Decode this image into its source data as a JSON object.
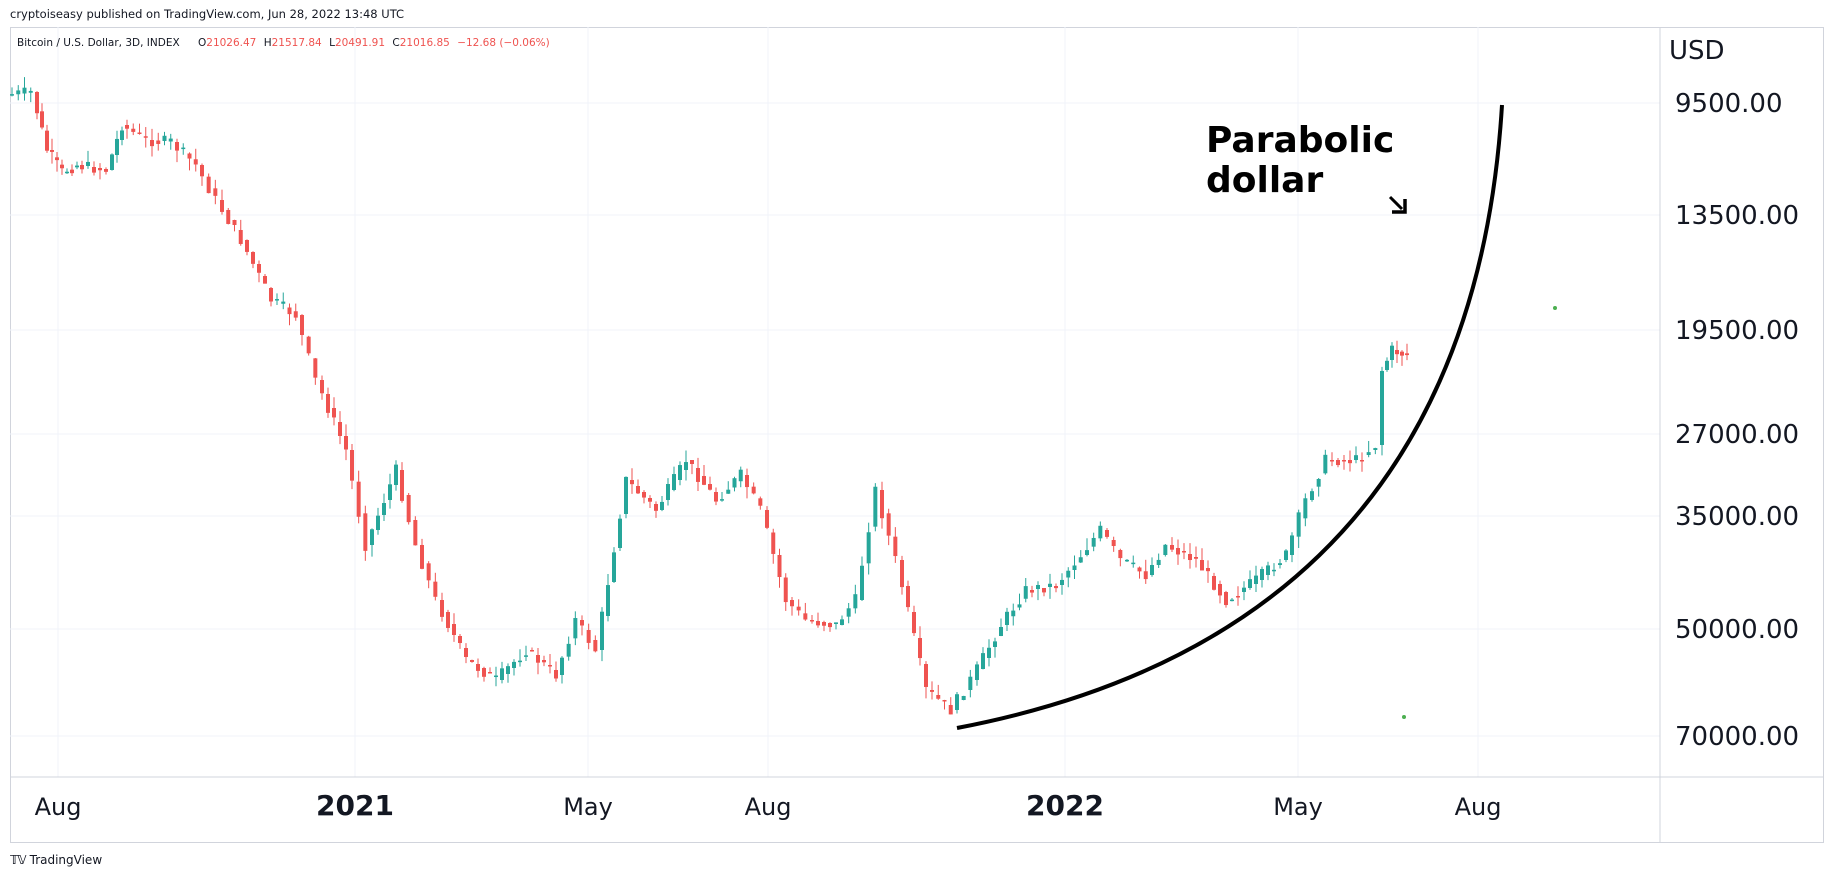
{
  "header": {
    "published": "cryptoiseasy published on TradingView.com, Jun 28, 2022 13:48 UTC"
  },
  "legend": {
    "symbol": "Bitcoin / U.S. Dollar, 3D, INDEX",
    "o_label": "O",
    "o": "21026.47",
    "h_label": "H",
    "h": "21517.84",
    "l_label": "L",
    "l": "20491.91",
    "c_label": "C",
    "c": "21016.85",
    "change": "−12.68 (−0.06%)"
  },
  "annotation": {
    "line1": "Parabolic",
    "line2": "dollar",
    "arrow_icon": "arrow-down-right-icon"
  },
  "footer": {
    "logo_icon": "tradingview-logo-icon",
    "brand": "TradingView"
  },
  "colors": {
    "up": "#ef5350",
    "down": "#26a69a",
    "grid": "#f0f3fa",
    "curve": "#000000",
    "dot": "#4caf50"
  },
  "chart_data": {
    "type": "candlestick",
    "scale": "inverted-price",
    "currency_label": "USD",
    "y_ticks": [
      "9500.00",
      "13500.00",
      "19500.00",
      "27000.00",
      "35000.00",
      "50000.00",
      "70000.00"
    ],
    "x_ticks": [
      {
        "label": "Aug",
        "bold": false
      },
      {
        "label": "2021",
        "bold": true
      },
      {
        "label": "May",
        "bold": false
      },
      {
        "label": "Aug",
        "bold": false
      },
      {
        "label": "2022",
        "bold": true
      },
      {
        "label": "May",
        "bold": false
      },
      {
        "label": "Aug",
        "bold": false
      }
    ],
    "key_points": [
      {
        "date": "2020-07",
        "price": 9200
      },
      {
        "date": "2020-08",
        "price": 11700
      },
      {
        "date": "2020-09",
        "price": 10300
      },
      {
        "date": "2020-11",
        "price": 16000
      },
      {
        "date": "2021-01",
        "price": 33000
      },
      {
        "date": "2021-02",
        "price": 47000
      },
      {
        "date": "2021-04",
        "price": 59000
      },
      {
        "date": "2021-05",
        "price": 37000
      },
      {
        "date": "2021-06",
        "price": 34000
      },
      {
        "date": "2021-07",
        "price": 31000
      },
      {
        "date": "2021-09",
        "price": 47000
      },
      {
        "date": "2021-11",
        "price": 65000
      },
      {
        "date": "2022-01",
        "price": 36000
      },
      {
        "date": "2022-03",
        "price": 45000
      },
      {
        "date": "2022-05",
        "price": 29000
      },
      {
        "date": "2022-06",
        "price": 20000
      },
      {
        "date": "2022-06-28",
        "price": 21016.85
      }
    ]
  }
}
